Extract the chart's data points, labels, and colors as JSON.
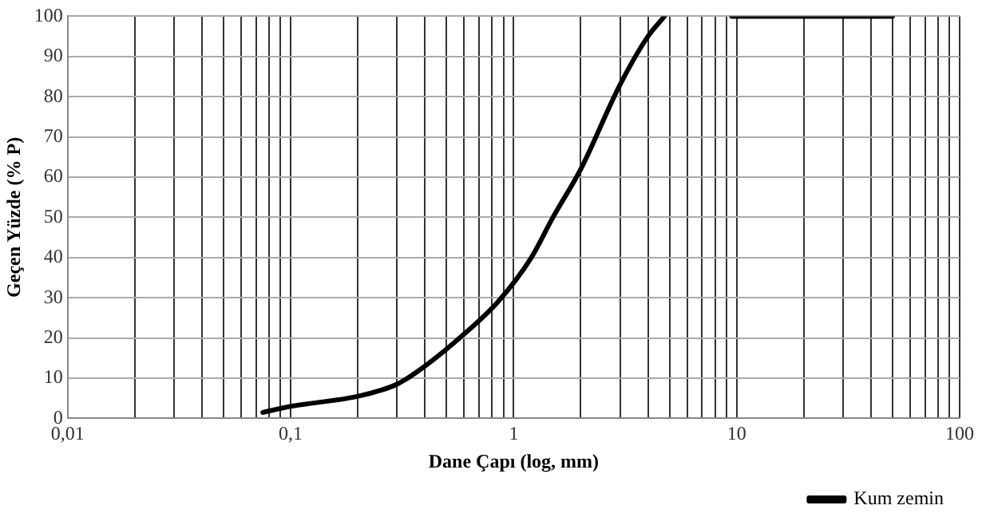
{
  "chart_data": {
    "type": "line",
    "xlabel": "Dane Çapı (log, mm)",
    "ylabel": "Geçen Yüzde (% P)",
    "log": "x",
    "grid": true,
    "legend": "bottom right",
    "marker": "none",
    "line_style": "solid",
    "xlim": [
      0.01,
      100
    ],
    "ylim": [
      0,
      100
    ],
    "yticks": [
      0,
      10,
      20,
      30,
      40,
      50,
      60,
      70,
      80,
      90,
      100
    ],
    "xticks": [
      {
        "value": 0.01,
        "label": "0,01"
      },
      {
        "value": 0.02,
        "label": null
      },
      {
        "value": 0.03,
        "label": null
      },
      {
        "value": 0.04,
        "label": null
      },
      {
        "value": 0.05,
        "label": null
      },
      {
        "value": 0.06,
        "label": null
      },
      {
        "value": 0.07,
        "label": null
      },
      {
        "value": 0.08,
        "label": null
      },
      {
        "value": 0.09,
        "label": null
      },
      {
        "value": 0.1,
        "label": "0,1"
      },
      {
        "value": 0.2,
        "label": null
      },
      {
        "value": 0.3,
        "label": null
      },
      {
        "value": 0.4,
        "label": null
      },
      {
        "value": 0.5,
        "label": null
      },
      {
        "value": 0.6,
        "label": null
      },
      {
        "value": 0.7,
        "label": null
      },
      {
        "value": 0.8,
        "label": null
      },
      {
        "value": 0.9,
        "label": null
      },
      {
        "value": 1,
        "label": "1"
      },
      {
        "value": 2,
        "label": null
      },
      {
        "value": 3,
        "label": null
      },
      {
        "value": 4,
        "label": null
      },
      {
        "value": 5,
        "label": null
      },
      {
        "value": 6,
        "label": null
      },
      {
        "value": 7,
        "label": null
      },
      {
        "value": 8,
        "label": null
      },
      {
        "value": 9,
        "label": null
      },
      {
        "value": 10,
        "label": "10"
      },
      {
        "value": 20,
        "label": null
      },
      {
        "value": 30,
        "label": null
      },
      {
        "value": 40,
        "label": null
      },
      {
        "value": 50,
        "label": null
      },
      {
        "value": 60,
        "label": null
      },
      {
        "value": 70,
        "label": null
      },
      {
        "value": 80,
        "label": null
      },
      {
        "value": 90,
        "label": null
      },
      {
        "value": 100,
        "label": "100"
      }
    ],
    "series": [
      {
        "name": "Kum zemin",
        "color": "#000000",
        "x": [
          0.075,
          0.1,
          0.2,
          0.3,
          0.4,
          0.6,
          0.85,
          1.2,
          1.5,
          2,
          3,
          4,
          4.75,
          7,
          9.5,
          50
        ],
        "values": [
          1.5,
          3,
          5.5,
          8.5,
          13,
          21,
          29,
          40,
          50,
          62,
          83,
          95,
          100,
          null,
          100,
          100
        ]
      }
    ]
  }
}
